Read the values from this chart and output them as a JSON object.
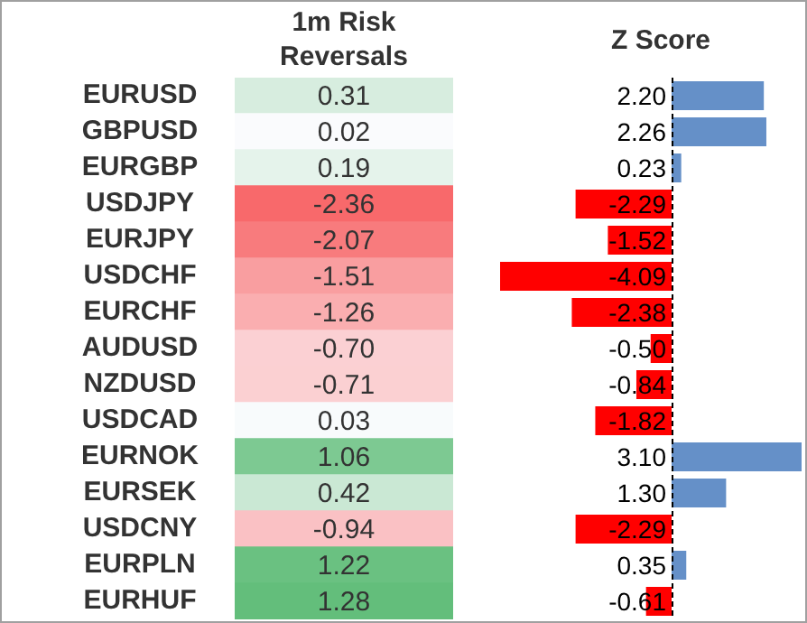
{
  "chart_data": [
    {
      "type": "heatmap",
      "title": "1m Risk Reversals",
      "categories": [
        null
      ],
      "y_categories": [
        "EURUSD",
        "GBPUSD",
        "EURGBP",
        "USDJPY",
        "EURJPY",
        "USDCHF",
        "EURCHF",
        "AUDUSD",
        "NZDUSD",
        "USDCAD",
        "EURNOK",
        "EURSEK",
        "USDCNY",
        "EURPLN",
        "EURHUF"
      ],
      "cells": [
        [
          0.31
        ],
        [
          0.02
        ],
        [
          0.19
        ],
        [
          -2.36
        ],
        [
          -2.07
        ],
        [
          -1.51
        ],
        [
          -1.26
        ],
        [
          -0.7
        ],
        [
          -0.71
        ],
        [
          0.03
        ],
        [
          1.06
        ],
        [
          0.42
        ],
        [
          -0.94
        ],
        [
          1.22
        ],
        [
          1.28
        ]
      ],
      "cell_labels": [
        [
          "0.31"
        ],
        [
          "0.02"
        ],
        [
          "0.19"
        ],
        [
          "-2.36"
        ],
        [
          "-2.07"
        ],
        [
          "-1.51"
        ],
        [
          "-1.26"
        ],
        [
          "-0.70"
        ],
        [
          "-0.71"
        ],
        [
          "0.03"
        ],
        [
          "1.06"
        ],
        [
          "0.42"
        ],
        [
          "-0.94"
        ],
        [
          "1.22"
        ],
        [
          "1.28"
        ]
      ]
    },
    {
      "type": "bar",
      "orientation": "horizontal",
      "title": "Z Score",
      "ref_lines": [
        {
          "axis": "x",
          "value": 0,
          "color": "#000000",
          "line_style": "dashed"
        }
      ],
      "values": [
        2.2,
        2.26,
        0.23,
        -2.29,
        -1.52,
        -4.09,
        -2.38,
        -0.5,
        -0.84,
        -1.82,
        3.1,
        1.3,
        -2.29,
        0.35,
        -0.61
      ],
      "colors": [
        "#6590c8",
        "#6590c8",
        "#6590c8",
        "#ff0000",
        "#ff0000",
        "#ff0000",
        "#ff0000",
        "#ff0000",
        "#ff0000",
        "#ff0000",
        "#6590c8",
        "#6590c8",
        "#ff0000",
        "#6590c8",
        "#ff0000"
      ],
      "value_labels": [
        "2.20",
        "2.26",
        "0.23",
        "-2.29",
        "-1.52",
        "-4.09",
        "-2.38",
        "-0.50",
        "-0.84",
        "-1.82",
        "3.10",
        "1.30",
        "-2.29",
        "0.35",
        "-0.61"
      ]
    }
  ]
}
